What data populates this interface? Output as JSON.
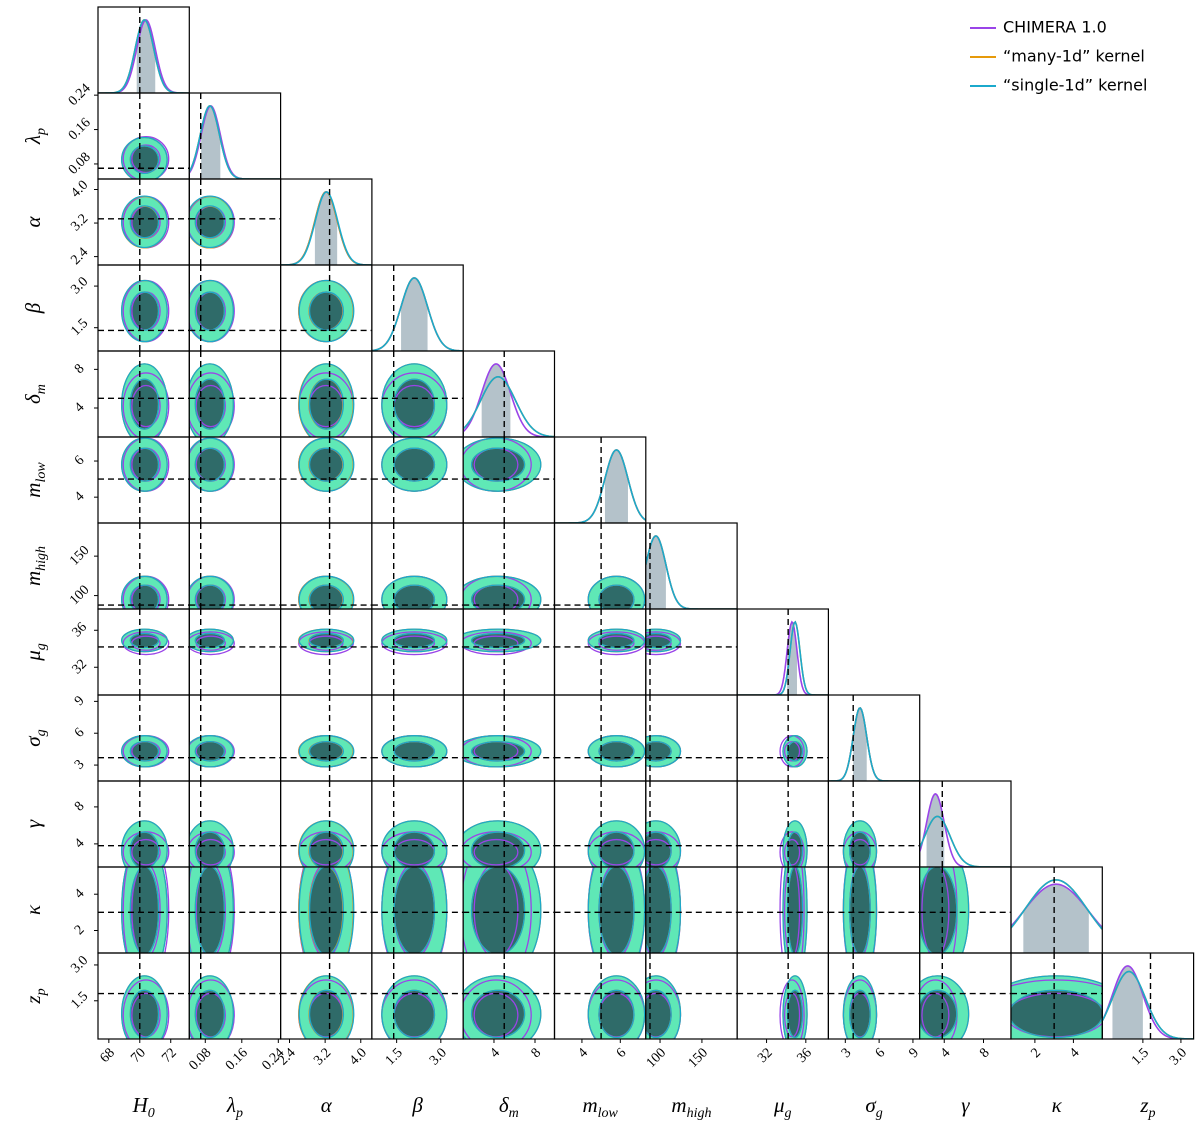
{
  "chart_data": {
    "type": "corner",
    "fill": {
      "outer": "#5fe8b6",
      "inner": "#2f6b69"
    },
    "hist_color": "#b4c2ca",
    "params": [
      {
        "label": {
          "base": "H",
          "sub": "0"
        },
        "lim": [
          67.3,
          73.2
        ],
        "ticks": [
          68,
          70,
          72
        ],
        "truth": 70
      },
      {
        "label": {
          "base": "λ",
          "sub": "p"
        },
        "lim": [
          0.045,
          0.245
        ],
        "ticks": [
          0.08,
          0.16,
          0.24
        ],
        "truth": 0.07
      },
      {
        "label": {
          "base": "α"
        },
        "lim": [
          2.2,
          4.25
        ],
        "ticks": [
          2.4,
          3.2,
          {
            "value": 4,
            "label": "4.0"
          }
        ],
        "truth": 3.3
      },
      {
        "label": {
          "base": "β"
        },
        "lim": [
          0.66,
          3.76
        ],
        "ticks": [
          1.5,
          {
            "value": 3,
            "label": "3.0"
          }
        ],
        "truth": 1.4
      },
      {
        "label": {
          "base": "δ",
          "sub": "m"
        },
        "lim": [
          1,
          9.9
        ],
        "ticks": [
          4,
          8
        ],
        "truth": 5
      },
      {
        "label": {
          "base": "m",
          "sub": "low"
        },
        "lim": [
          2.57,
          7.33
        ],
        "ticks": [
          4,
          6
        ],
        "truth": 5
      },
      {
        "label": {
          "base": "m",
          "sub": "high"
        },
        "lim": [
          83,
          192
        ],
        "ticks": [
          100,
          150
        ],
        "truth": 88
      },
      {
        "label": {
          "base": "μ",
          "sub": "g"
        },
        "lim": [
          29,
          38.3
        ],
        "ticks": [
          32,
          36
        ],
        "truth": 34.2
      },
      {
        "label": {
          "base": "σ",
          "sub": "g"
        },
        "lim": [
          1.5,
          9.6
        ],
        "ticks": [
          3,
          6,
          9
        ],
        "truth": 3.7
      },
      {
        "label": {
          "base": "γ"
        },
        "lim": [
          1.5,
          10.8
        ],
        "ticks": [
          4,
          8
        ],
        "truth": 3.8
      },
      {
        "label": {
          "base": "κ"
        },
        "lim": [
          0.76,
          5.5
        ],
        "ticks": [
          2,
          4
        ],
        "truth": 3
      },
      {
        "label": {
          "base": "z",
          "sub": "p"
        },
        "lim": [
          -0.1,
          3.5
        ],
        "ticks": [
          1.5,
          {
            "value": 3,
            "label": "3.0"
          }
        ],
        "truth": 1.8
      }
    ],
    "series": [
      {
        "name": "CHIMERA 1.0",
        "color": "#9a44e8",
        "mean": [
          70.4,
          0.092,
          3.22,
          2.1,
          4.2,
          5.8,
          95,
          34.6,
          4.3,
          3.1,
          3.1,
          0.9
        ],
        "sd": [
          0.6,
          0.021,
          0.25,
          0.45,
          1.4,
          0.6,
          12,
          0.5,
          0.6,
          0.9,
          1.7,
          0.6
        ]
      },
      {
        "name": "“many-1d” kernel",
        "color": "#e69a0a",
        "mean": [
          70.3,
          0.09,
          3.22,
          2.1,
          4.4,
          5.8,
          95,
          34.9,
          4.3,
          3.3,
          3.1,
          0.95
        ],
        "sd": [
          0.6,
          0.021,
          0.25,
          0.45,
          1.7,
          0.6,
          12,
          0.5,
          0.6,
          1.3,
          1.6,
          0.65
        ]
      },
      {
        "name": "“single-1d” kernel",
        "color": "#1ba9cc",
        "mean": [
          70.3,
          0.09,
          3.23,
          2.1,
          4.4,
          5.8,
          95,
          34.9,
          4.3,
          3.3,
          3.1,
          0.95
        ],
        "sd": [
          0.6,
          0.021,
          0.25,
          0.45,
          1.7,
          0.6,
          12,
          0.5,
          0.6,
          1.3,
          1.6,
          0.65
        ]
      }
    ]
  }
}
